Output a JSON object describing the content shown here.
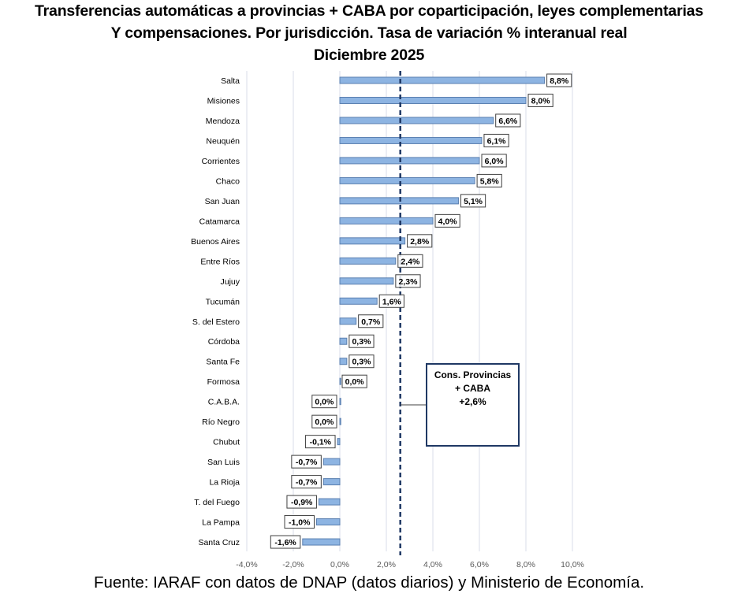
{
  "chart_data": {
    "type": "bar",
    "orientation": "horizontal",
    "title": "Transferencias automáticas a provincias + CABA por coparticipación, leyes complementarias",
    "title_line2": "Y compensaciones. Por jurisdicción. Tasa de variación % interanual real",
    "subtitle": "Diciembre 2025",
    "xlabel": "",
    "ylabel": "",
    "xlim": [
      -4.0,
      10.0
    ],
    "grid": true,
    "x_ticks": [
      -4,
      -2,
      0,
      2,
      4,
      6,
      8,
      10
    ],
    "x_tick_labels": [
      "-4,0%",
      "-2,0%",
      "0,0%",
      "2,0%",
      "4,0%",
      "6,0%",
      "8,0%",
      "10,0%"
    ],
    "categories": [
      "Salta",
      "Misiones",
      "Mendoza",
      "Neuquén",
      "Corrientes",
      "Chaco",
      "San Juan",
      "Catamarca",
      "Buenos Aires",
      "Entre Ríos",
      "Jujuy",
      "Tucumán",
      "S. del Estero",
      "Córdoba",
      "Santa Fe",
      "Formosa",
      "C.A.B.A.",
      "Río Negro",
      "Chubut",
      "San Luis",
      "La Rioja",
      "T. del Fuego",
      "La Pampa",
      "Santa Cruz"
    ],
    "values": [
      8.8,
      8.0,
      6.6,
      6.1,
      6.0,
      5.8,
      5.1,
      4.0,
      2.8,
      2.4,
      2.3,
      1.6,
      0.7,
      0.3,
      0.3,
      0.0,
      0.0,
      0.0,
      -0.1,
      -0.7,
      -0.7,
      -0.9,
      -1.0,
      -1.6
    ],
    "data_labels": [
      "8,8%",
      "8,0%",
      "6,6%",
      "6,1%",
      "6,0%",
      "5,8%",
      "5,1%",
      "4,0%",
      "2,8%",
      "2,4%",
      "2,3%",
      "1,6%",
      "0,7%",
      "0,3%",
      "0,3%",
      "0,0%",
      "0,0%",
      "0,0%",
      "-0,1%",
      "-0,7%",
      "-0,7%",
      "-0,9%",
      "-1,0%",
      "-1,6%"
    ],
    "reference_line": {
      "value": 2.6,
      "style": "dashed"
    },
    "annotation": {
      "line1": "Cons. Provincias",
      "line2": "+ CABA",
      "line3": "+2,6%"
    },
    "colors": {
      "bar_fill": "#8DB4E2",
      "bar_border": "#5A7FB0",
      "ref_line": "#1F3864",
      "grid": "#D9DEE8",
      "label_border": "#404040",
      "annotation_border": "#1F3864"
    }
  },
  "footer": "Fuente: IARAF con datos de DNAP (datos diarios) y Ministerio de Economía."
}
